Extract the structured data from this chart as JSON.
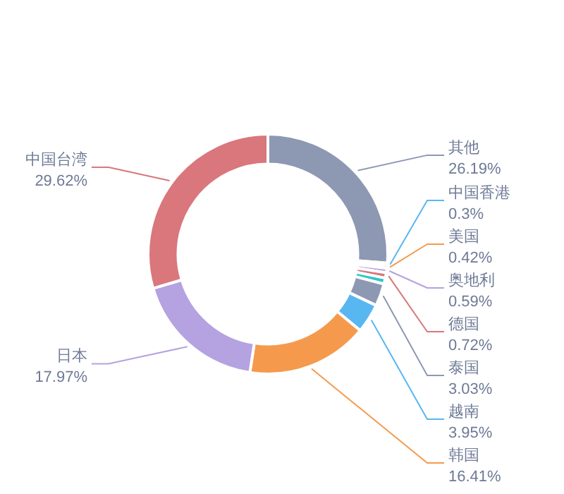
{
  "chart_data": {
    "type": "donut",
    "categories": [
      "其他",
      "中国香港",
      "美国",
      "奥地利",
      "德国",
      null,
      "泰国",
      "越南",
      "韩国",
      "日本",
      "中国台湾"
    ],
    "values": [
      26.19,
      0.3,
      0.42,
      0.59,
      0.72,
      0.8,
      3.03,
      3.95,
      16.41,
      17.97,
      29.62
    ],
    "value_labels": [
      "26.19%",
      "0.3%",
      "0.42%",
      "0.59%",
      "0.72%",
      null,
      "3.03%",
      "3.95%",
      "16.41%",
      "17.97%",
      "29.62%"
    ],
    "colors": [
      "#8d98b3",
      "#58b7f0",
      "#f59a4c",
      "#b5a2e0",
      "#d9777c",
      "#2ec7c9",
      "#8d98b3",
      "#58b7f0",
      "#f59a4c",
      "#b5a2e0",
      "#d9777c"
    ],
    "legend": false
  }
}
